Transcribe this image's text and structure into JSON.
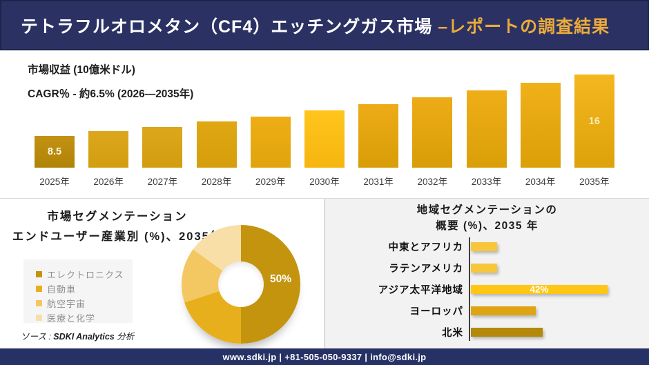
{
  "header": {
    "title_main": "テトラフルオロメタン（CF4）エッチングガス市場 ",
    "title_accent": "–レポートの調査結果"
  },
  "colors": {
    "header_navy": "#2b3263",
    "footer_navy": "#263165",
    "accent_gold": "#ecab3a",
    "right_panel_gray": "#f2f2f2"
  },
  "source": {
    "prefix": "ソース : ",
    "brand": "SDKI Analytics",
    "suffix": " 分析"
  },
  "footer": {
    "text": "www.sdki.jp | +81-505-050-9337 | info@sdki.jp"
  },
  "chart_data": [
    {
      "id": "revenue",
      "type": "bar",
      "title": "市場収益 (10億米ドル)",
      "subtitle": "CAGR％ - 約6.5% (2026―2035年)",
      "categories": [
        "2025年",
        "2026年",
        "2027年",
        "2028年",
        "2029年",
        "2030年",
        "2031年",
        "2032年",
        "2033年",
        "2034年",
        "2035年"
      ],
      "values": [
        8.5,
        9.1,
        9.6,
        10.3,
        10.9,
        11.6,
        12.4,
        13.2,
        14.1,
        15.0,
        16
      ],
      "data_labels": {
        "0": "8.5",
        "10": "16"
      },
      "data_label_colors": {
        "0": "#fdf8e8",
        "10": "#f8eebc"
      },
      "ylim": [
        8.5,
        16
      ],
      "grid": false,
      "bar_colors": [
        [
          "#c29213",
          "#b08206"
        ],
        [
          "#dca71c",
          "#d29d10"
        ],
        [
          "#dca71c",
          "#d29d10"
        ],
        [
          "#e0a713",
          "#d69e0c"
        ],
        [
          "#eead14",
          "#e0a40e"
        ],
        [
          "#ffc51d",
          "#f6b50f"
        ],
        [
          "#edac17",
          "#d89d08"
        ],
        [
          "#edac17",
          "#d89d08"
        ],
        [
          "#efae18",
          "#da9f08"
        ],
        [
          "#f0b019",
          "#db9f08"
        ],
        [
          "#f4b71f",
          "#dda10a"
        ]
      ]
    },
    {
      "id": "enduser",
      "type": "pie",
      "title_line1": "市場セグメンテーション",
      "title_line2": "エンドユーザー産業別 (%)、2035年",
      "labels": [
        "エレクトロニクス",
        "自動車",
        "航空宇宙",
        "医療と化学"
      ],
      "values": [
        50,
        20,
        15,
        15
      ],
      "colors": [
        "#c4940e",
        "#e7af1c",
        "#f3c761",
        "#f8dfa8"
      ],
      "value_label": "50%",
      "legend_position": "left"
    },
    {
      "id": "region",
      "type": "bar",
      "orientation": "horizontal",
      "title_line1": "地域セグメンテーションの",
      "title_line2": "概要 (%)、2035 年",
      "categories": [
        "中東とアフリカ",
        "ラテンアメリカ",
        "アジア太平洋地域",
        "ヨーロッパ",
        "北米"
      ],
      "values": [
        8,
        8,
        42,
        20,
        22
      ],
      "data_labels": {
        "2": "42%"
      },
      "colors": [
        "#f8c63b",
        "#f8c63b",
        "#ffc714",
        "#dfa413",
        "#b3880b"
      ],
      "xlim": [
        0,
        45
      ],
      "grid": false
    }
  ]
}
